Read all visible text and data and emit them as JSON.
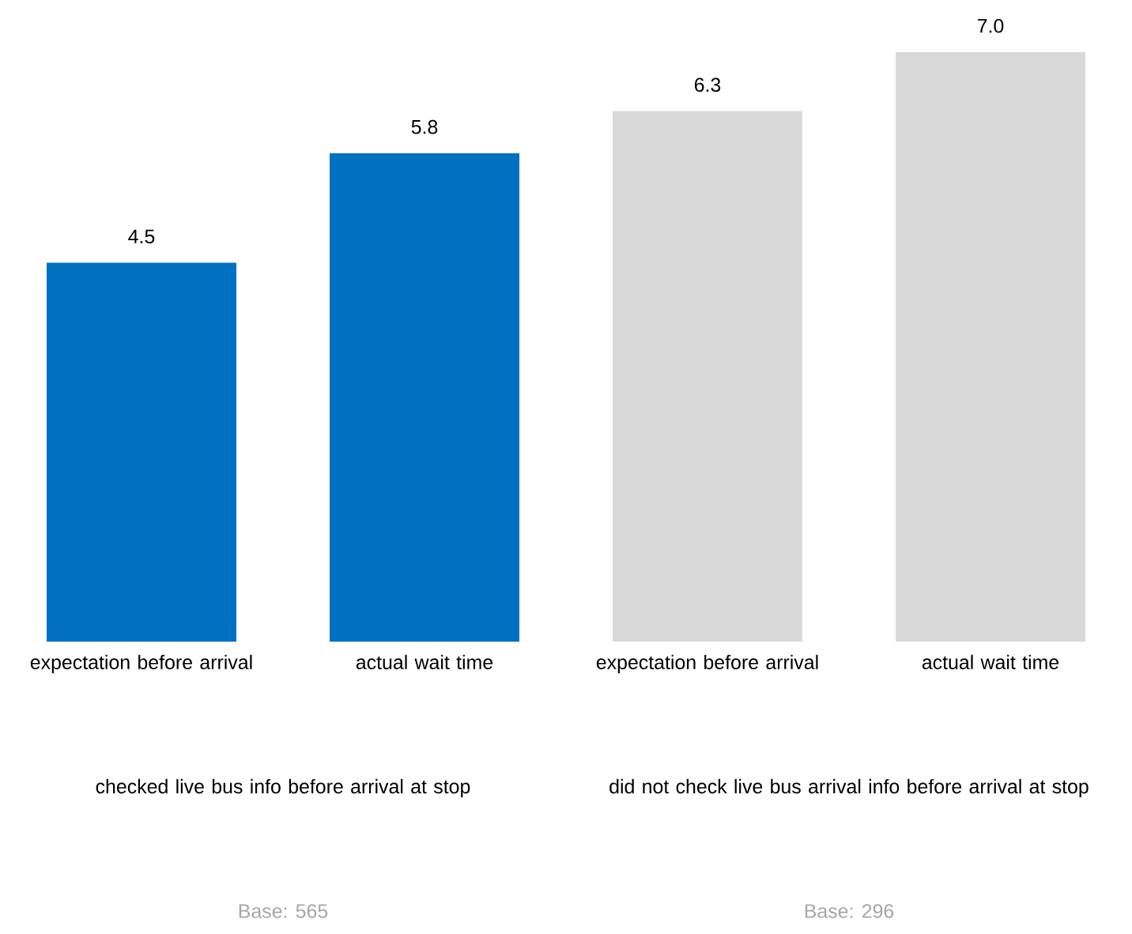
{
  "chart_data": {
    "type": "bar",
    "categories": [
      "expectation before arrival",
      "actual wait time",
      "expectation before arrival",
      "actual wait time"
    ],
    "values": [
      4.5,
      5.8,
      6.3,
      7.0
    ],
    "colors": [
      "#0070c0",
      "#0070c0",
      "#d9d9d9",
      "#d9d9d9"
    ],
    "value_labels": [
      "4.5",
      "5.8",
      "6.3",
      "7.0"
    ],
    "tick_labels": "x",
    "annotations": [
      "checked live bus info before arrival at stop",
      "did not check live bus arrival info before arrival at stop",
      "Base: 565",
      "Base: 296"
    ]
  }
}
